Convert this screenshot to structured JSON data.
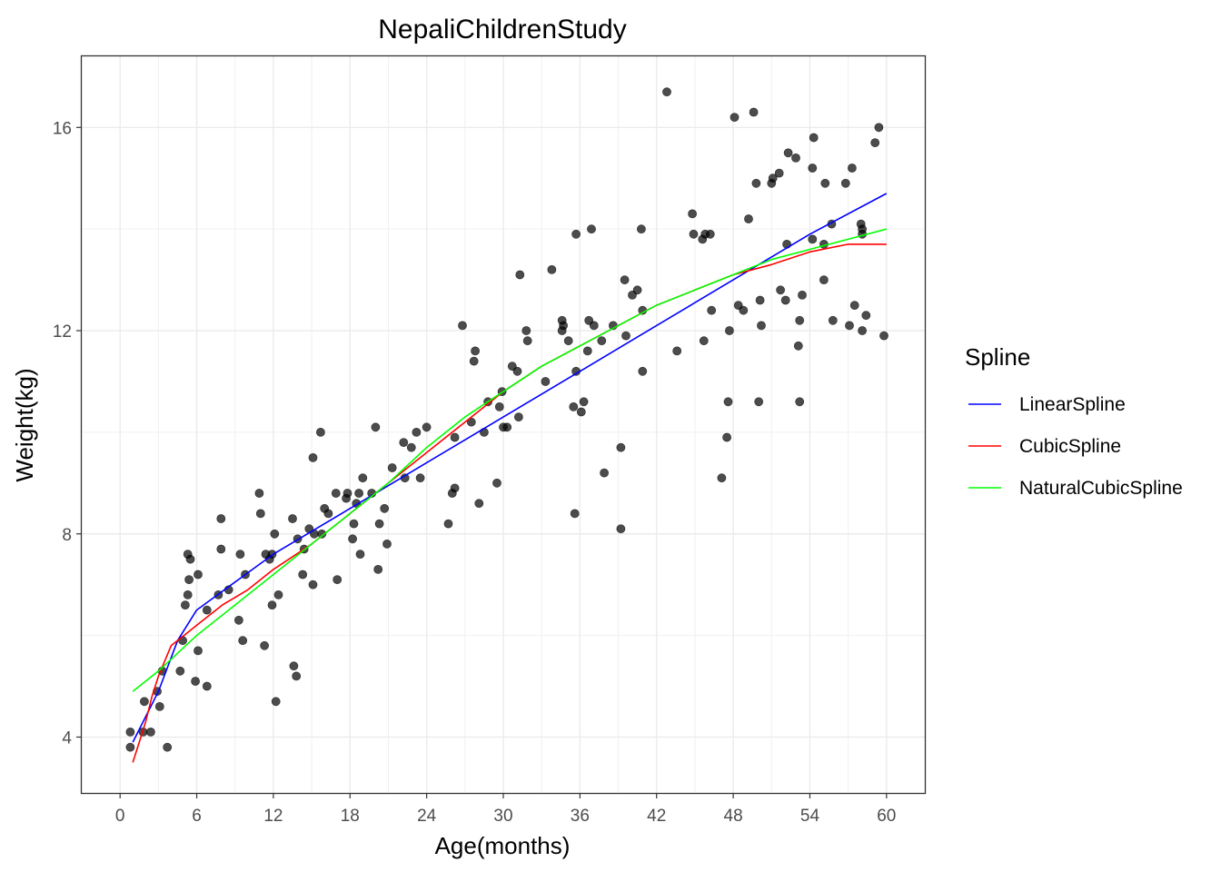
{
  "chart_data": {
    "type": "scatter",
    "title": "NepaliChildrenStudy",
    "xlabel": "Age(months)",
    "ylabel": "Weight(kg)",
    "xlim": [
      -3,
      63
    ],
    "ylim": [
      2.9,
      17.4
    ],
    "xticks": [
      0,
      6,
      12,
      18,
      24,
      30,
      36,
      42,
      48,
      54,
      60
    ],
    "xtick_labels": [
      "0",
      "6",
      "12",
      "18",
      "24",
      "30",
      "36",
      "42",
      "48",
      "54",
      "60"
    ],
    "yticks": [
      4,
      8,
      12,
      16
    ],
    "ytick_labels": [
      "4",
      "8",
      "12",
      "16"
    ],
    "grid": true,
    "legend_position": "right",
    "legend_title": "Spline",
    "point_color": "#000000",
    "points": [
      [
        0.8,
        4.1
      ],
      [
        0.8,
        3.8
      ],
      [
        1.8,
        4.1
      ],
      [
        1.9,
        4.7
      ],
      [
        2.4,
        4.1
      ],
      [
        2.9,
        4.9
      ],
      [
        3.1,
        4.6
      ],
      [
        3.3,
        5.3
      ],
      [
        3.7,
        3.8
      ],
      [
        4.7,
        5.3
      ],
      [
        4.9,
        5.9
      ],
      [
        5.1,
        6.6
      ],
      [
        5.3,
        6.8
      ],
      [
        5.3,
        7.6
      ],
      [
        5.4,
        7.1
      ],
      [
        5.5,
        7.5
      ],
      [
        5.9,
        5.1
      ],
      [
        6.1,
        7.2
      ],
      [
        6.1,
        5.7
      ],
      [
        6.8,
        5.0
      ],
      [
        6.8,
        6.5
      ],
      [
        7.7,
        6.8
      ],
      [
        7.9,
        8.3
      ],
      [
        7.9,
        7.7
      ],
      [
        8.5,
        6.9
      ],
      [
        9.3,
        6.3
      ],
      [
        9.4,
        7.6
      ],
      [
        9.6,
        5.9
      ],
      [
        9.8,
        7.2
      ],
      [
        10.9,
        8.8
      ],
      [
        11.0,
        8.4
      ],
      [
        11.3,
        5.8
      ],
      [
        11.4,
        7.6
      ],
      [
        11.7,
        7.5
      ],
      [
        11.9,
        7.6
      ],
      [
        11.9,
        6.6
      ],
      [
        12.1,
        8.0
      ],
      [
        12.2,
        4.7
      ],
      [
        12.4,
        6.8
      ],
      [
        13.5,
        8.3
      ],
      [
        13.6,
        5.4
      ],
      [
        13.8,
        5.2
      ],
      [
        13.9,
        7.9
      ],
      [
        14.3,
        7.2
      ],
      [
        14.4,
        7.7
      ],
      [
        14.8,
        8.1
      ],
      [
        15.1,
        9.5
      ],
      [
        15.1,
        7.0
      ],
      [
        15.2,
        8.0
      ],
      [
        15.7,
        10.0
      ],
      [
        15.8,
        8.0
      ],
      [
        16.0,
        8.5
      ],
      [
        16.3,
        8.4
      ],
      [
        16.9,
        8.8
      ],
      [
        17.0,
        7.1
      ],
      [
        17.7,
        8.7
      ],
      [
        17.8,
        8.8
      ],
      [
        18.2,
        7.9
      ],
      [
        18.3,
        8.2
      ],
      [
        18.5,
        8.6
      ],
      [
        18.7,
        8.8
      ],
      [
        18.8,
        7.6
      ],
      [
        19.0,
        9.1
      ],
      [
        19.7,
        8.8
      ],
      [
        20.0,
        10.1
      ],
      [
        20.2,
        7.3
      ],
      [
        20.3,
        8.2
      ],
      [
        20.7,
        8.5
      ],
      [
        20.9,
        7.8
      ],
      [
        21.3,
        9.3
      ],
      [
        22.2,
        9.8
      ],
      [
        22.3,
        9.1
      ],
      [
        22.8,
        9.7
      ],
      [
        23.2,
        10.0
      ],
      [
        23.5,
        9.1
      ],
      [
        24.0,
        10.1
      ],
      [
        25.7,
        8.2
      ],
      [
        26.0,
        8.8
      ],
      [
        26.2,
        8.9
      ],
      [
        26.2,
        9.9
      ],
      [
        26.8,
        12.1
      ],
      [
        27.5,
        10.2
      ],
      [
        27.7,
        11.4
      ],
      [
        27.8,
        11.6
      ],
      [
        28.1,
        8.6
      ],
      [
        28.5,
        10.0
      ],
      [
        28.8,
        10.6
      ],
      [
        29.5,
        9.0
      ],
      [
        29.7,
        10.5
      ],
      [
        29.9,
        10.8
      ],
      [
        30.0,
        10.1
      ],
      [
        30.3,
        10.1
      ],
      [
        30.7,
        11.3
      ],
      [
        31.1,
        11.2
      ],
      [
        31.2,
        10.3
      ],
      [
        31.3,
        13.1
      ],
      [
        31.8,
        12.0
      ],
      [
        31.9,
        11.8
      ],
      [
        33.3,
        11.0
      ],
      [
        33.8,
        13.2
      ],
      [
        34.6,
        12.2
      ],
      [
        34.6,
        12.0
      ],
      [
        34.7,
        12.1
      ],
      [
        35.1,
        11.8
      ],
      [
        35.5,
        10.5
      ],
      [
        35.6,
        8.4
      ],
      [
        35.7,
        13.9
      ],
      [
        35.7,
        11.2
      ],
      [
        36.1,
        10.4
      ],
      [
        36.3,
        10.6
      ],
      [
        36.6,
        11.6
      ],
      [
        36.7,
        12.2
      ],
      [
        36.9,
        14.0
      ],
      [
        37.1,
        12.1
      ],
      [
        37.7,
        11.8
      ],
      [
        37.9,
        9.2
      ],
      [
        38.6,
        12.1
      ],
      [
        39.2,
        8.1
      ],
      [
        39.2,
        9.7
      ],
      [
        39.5,
        13.0
      ],
      [
        39.6,
        11.9
      ],
      [
        40.1,
        12.7
      ],
      [
        40.5,
        12.8
      ],
      [
        40.8,
        14.0
      ],
      [
        40.9,
        11.2
      ],
      [
        40.9,
        12.4
      ],
      [
        42.8,
        16.7
      ],
      [
        43.6,
        11.6
      ],
      [
        44.8,
        14.3
      ],
      [
        44.9,
        13.9
      ],
      [
        45.6,
        13.8
      ],
      [
        45.7,
        11.8
      ],
      [
        45.8,
        13.9
      ],
      [
        46.2,
        13.9
      ],
      [
        46.3,
        12.4
      ],
      [
        47.1,
        9.1
      ],
      [
        47.5,
        9.9
      ],
      [
        47.6,
        10.6
      ],
      [
        47.7,
        12.0
      ],
      [
        48.1,
        16.2
      ],
      [
        48.4,
        12.5
      ],
      [
        48.8,
        12.4
      ],
      [
        49.2,
        14.2
      ],
      [
        49.6,
        16.3
      ],
      [
        49.8,
        14.9
      ],
      [
        50.0,
        10.6
      ],
      [
        50.1,
        12.6
      ],
      [
        50.2,
        12.1
      ],
      [
        51.0,
        14.9
      ],
      [
        51.1,
        15.0
      ],
      [
        51.6,
        15.1
      ],
      [
        51.7,
        12.8
      ],
      [
        52.1,
        12.6
      ],
      [
        52.2,
        13.7
      ],
      [
        52.3,
        15.5
      ],
      [
        52.9,
        15.4
      ],
      [
        53.1,
        11.7
      ],
      [
        53.2,
        12.2
      ],
      [
        53.2,
        10.6
      ],
      [
        53.4,
        12.7
      ],
      [
        54.2,
        15.2
      ],
      [
        54.2,
        13.8
      ],
      [
        54.3,
        15.8
      ],
      [
        55.1,
        13.7
      ],
      [
        55.1,
        13.0
      ],
      [
        55.2,
        14.9
      ],
      [
        55.7,
        14.1
      ],
      [
        55.8,
        12.2
      ],
      [
        56.8,
        14.9
      ],
      [
        57.1,
        12.1
      ],
      [
        57.3,
        15.2
      ],
      [
        57.5,
        12.5
      ],
      [
        58.0,
        14.1
      ],
      [
        58.1,
        14.0
      ],
      [
        58.1,
        13.9
      ],
      [
        58.1,
        12.0
      ],
      [
        58.4,
        12.3
      ],
      [
        59.1,
        15.7
      ],
      [
        59.4,
        16.0
      ],
      [
        59.8,
        11.9
      ]
    ],
    "series": [
      {
        "name": "LinearSpline",
        "color": "#0000FF",
        "x": [
          1,
          3,
          4.5,
          6,
          12,
          18,
          24,
          30,
          36,
          42,
          48,
          54,
          60
        ],
        "y": [
          3.9,
          4.9,
          5.9,
          6.5,
          7.6,
          8.5,
          9.4,
          10.3,
          11.2,
          12.1,
          13.0,
          13.9,
          14.7
        ]
      },
      {
        "name": "CubicSpline",
        "color": "#FF0000",
        "x": [
          1,
          1.5,
          2,
          2.5,
          3,
          3.5,
          4,
          5,
          6,
          8,
          10,
          12,
          15,
          18,
          21,
          24,
          27,
          30,
          33,
          36,
          39,
          42,
          45,
          48,
          51,
          54,
          57,
          60
        ],
        "y": [
          3.5,
          3.9,
          4.3,
          4.8,
          5.2,
          5.5,
          5.8,
          6.0,
          6.2,
          6.6,
          6.9,
          7.3,
          7.8,
          8.4,
          9.0,
          9.6,
          10.2,
          10.8,
          11.3,
          11.7,
          12.1,
          12.5,
          12.8,
          13.1,
          13.3,
          13.55,
          13.7,
          13.7
        ]
      },
      {
        "name": "NaturalCubicSpline",
        "color": "#00FF00",
        "x": [
          1,
          3,
          6,
          9,
          12,
          15,
          18,
          21,
          24,
          27,
          30,
          33,
          36,
          39,
          42,
          45,
          48,
          51,
          54,
          57,
          60
        ],
        "y": [
          4.9,
          5.3,
          6.0,
          6.6,
          7.2,
          7.8,
          8.4,
          9.0,
          9.7,
          10.3,
          10.8,
          11.3,
          11.7,
          12.1,
          12.5,
          12.8,
          13.1,
          13.4,
          13.6,
          13.8,
          14.0
        ]
      }
    ]
  }
}
